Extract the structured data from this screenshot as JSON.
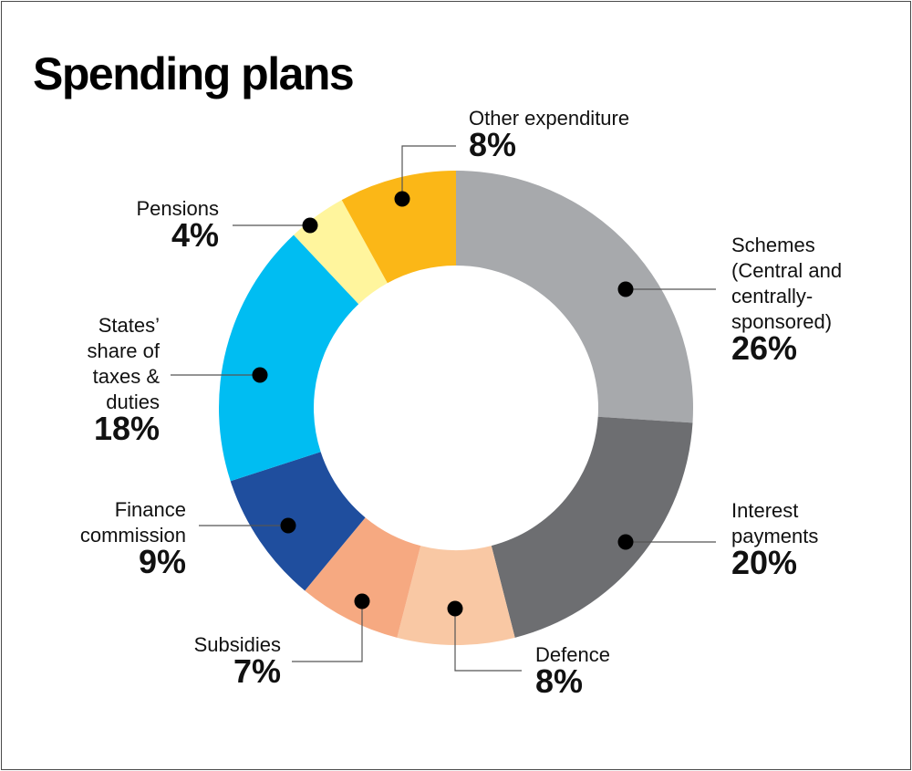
{
  "title": "Spending plans",
  "chart_data": {
    "type": "pie",
    "donut": true,
    "unit": "%",
    "slices": [
      {
        "label": [
          "Schemes",
          "(Central and",
          "centrally-",
          "sponsored)"
        ],
        "value": 26,
        "display": "26%",
        "color": "#a7a9ac"
      },
      {
        "label": [
          "Interest",
          "payments"
        ],
        "value": 20,
        "display": "20%",
        "color": "#6d6e71"
      },
      {
        "label": [
          "Defence"
        ],
        "value": 8,
        "display": "8%",
        "color": "#f9c8a4"
      },
      {
        "label": [
          "Subsidies"
        ],
        "value": 7,
        "display": "7%",
        "color": "#f6a981"
      },
      {
        "label": [
          "Finance",
          "commission"
        ],
        "value": 9,
        "display": "9%",
        "color": "#1f4e9e"
      },
      {
        "label": [
          "States’",
          "share of",
          "taxes &",
          "duties"
        ],
        "value": 18,
        "display": "18%",
        "color": "#00bdf2"
      },
      {
        "label": [
          "Pensions"
        ],
        "value": 4,
        "display": "4%",
        "color": "#fff59d"
      },
      {
        "label": [
          "Other expenditure"
        ],
        "value": 8,
        "display": "8%",
        "color": "#fbb717"
      }
    ]
  }
}
